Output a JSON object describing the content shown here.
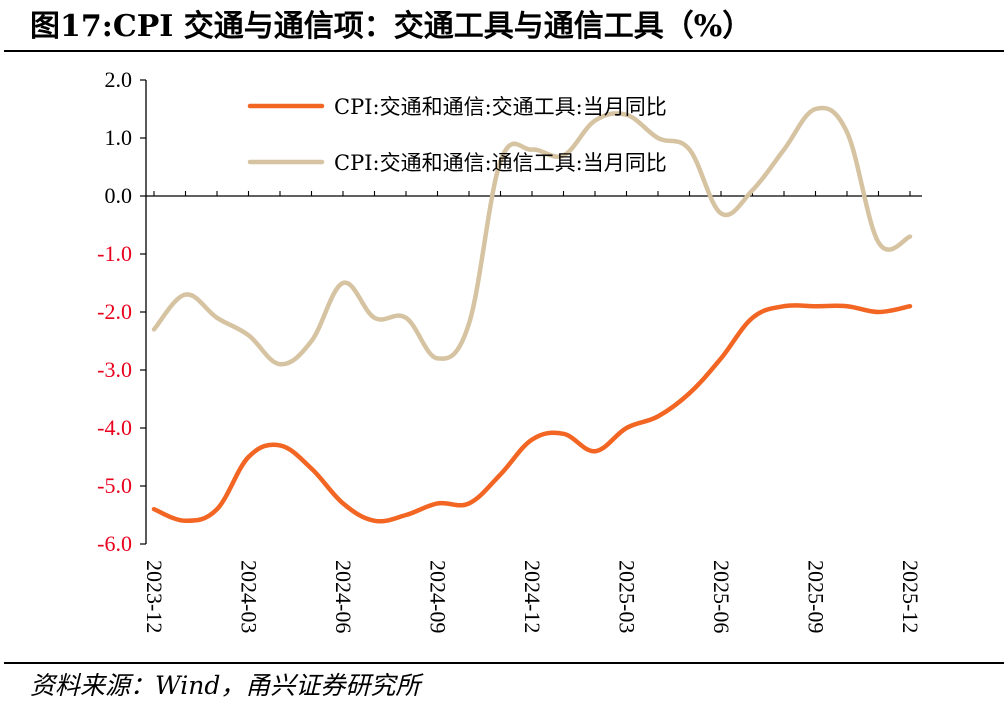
{
  "title": "图17:CPI 交通与通信项：交通工具与通信工具（%）",
  "source": "资料来源：Wind，甬兴证券研究所",
  "chart_data": {
    "type": "line",
    "ylim": [
      -6.0,
      2.0
    ],
    "yticks": [
      "2.0",
      "1.0",
      "0.0",
      "-1.0",
      "-2.0",
      "-3.0",
      "-4.0",
      "-5.0",
      "-6.0"
    ],
    "ytick_values": [
      2,
      1,
      0,
      -1,
      -2,
      -3,
      -4,
      -5,
      -6
    ],
    "negative_tick_color": "#e8001c",
    "positive_tick_color": "#000000",
    "x_categories": [
      "2023-12",
      "2024-01",
      "2024-02",
      "2024-03",
      "2024-04",
      "2024-05",
      "2024-06",
      "2024-07",
      "2024-08",
      "2024-09",
      "2024-10",
      "2024-11",
      "2024-12",
      "2025-01",
      "2025-02",
      "2025-03",
      "2025-04",
      "2025-05",
      "2025-06",
      "2025-07",
      "2025-08",
      "2025-09",
      "2025-10",
      "2025-11",
      "2025-12"
    ],
    "xtick_labels": [
      "2023-12",
      "2024-03",
      "2024-06",
      "2024-09",
      "2024-12",
      "2025-03",
      "2025-06",
      "2025-09",
      "2025-12"
    ],
    "xtick_indices": [
      0,
      3,
      6,
      9,
      12,
      15,
      18,
      21,
      24
    ],
    "grid": false,
    "legend_position": "top-left",
    "series": [
      {
        "name": "CPI:交通和通信:交通工具:当月同比",
        "color": "#f26522",
        "values": [
          -5.4,
          -5.6,
          -5.4,
          -4.5,
          -4.3,
          -4.7,
          -5.3,
          -5.6,
          -5.5,
          -5.3,
          -5.3,
          -4.8,
          -4.2,
          -4.1,
          -4.4,
          -4.0,
          -3.8,
          -3.4,
          -2.8,
          -2.1,
          -1.9,
          -1.9,
          -1.9,
          -2.0,
          -1.9
        ]
      },
      {
        "name": "CPI:交通和通信:通信工具:当月同比",
        "color": "#d6c3a2",
        "values": [
          -2.3,
          -1.7,
          -2.1,
          -2.4,
          -2.9,
          -2.5,
          -1.5,
          -2.1,
          -2.1,
          -2.8,
          -2.2,
          0.6,
          0.8,
          0.7,
          1.3,
          1.4,
          1.0,
          0.8,
          -0.3,
          0.1,
          0.8,
          1.5,
          1.1,
          -0.8,
          -0.7
        ]
      }
    ]
  }
}
